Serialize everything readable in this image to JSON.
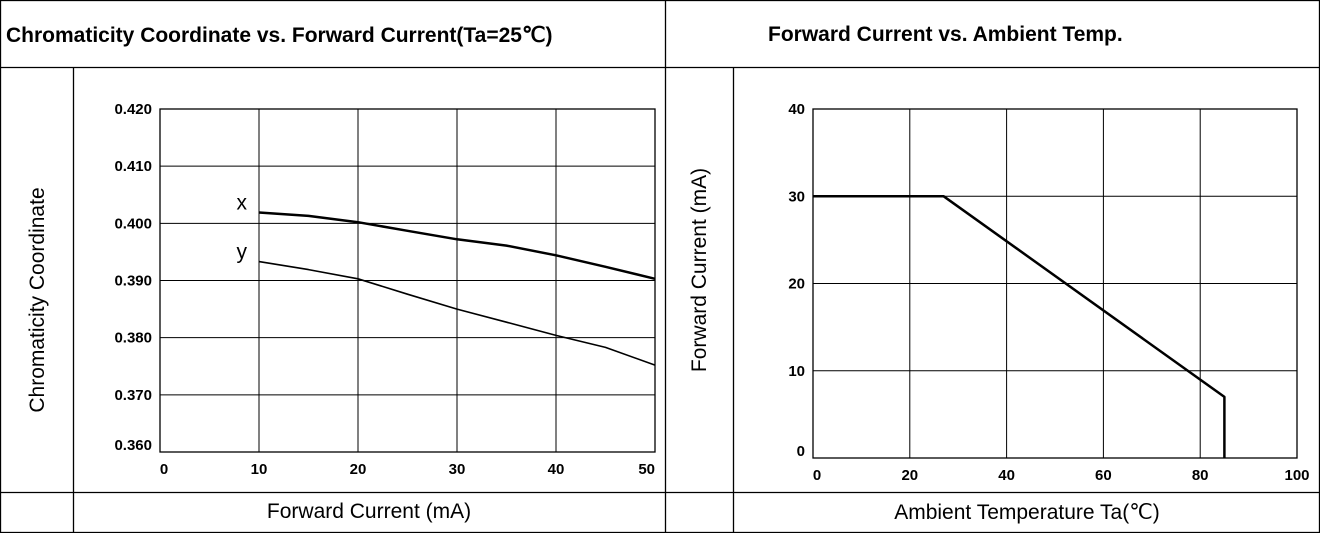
{
  "headers": {
    "left": "Chromaticity Coordinate vs. Forward Current(Ta=25℃)",
    "right": "Forward Current vs. Ambient Temp."
  },
  "chart_data": [
    {
      "type": "line",
      "title": "Chromaticity Coordinate vs. Forward Current(Ta=25℃)",
      "xlabel": "Forward Current (mA)",
      "ylabel": "Chromaticity Coordinate",
      "xlim": [
        0,
        50
      ],
      "ylim": [
        0.36,
        0.42
      ],
      "x_ticks": [
        "0",
        "10",
        "20",
        "30",
        "40",
        "50"
      ],
      "y_ticks": [
        "0.360",
        "0.370",
        "0.380",
        "0.390",
        "0.400",
        "0.410",
        "0.420"
      ],
      "grid": true,
      "series": [
        {
          "name": "x",
          "x": [
            10,
            15,
            20,
            25,
            30,
            35,
            40,
            45,
            50
          ],
          "y": [
            0.4019,
            0.4013,
            0.4002,
            0.3987,
            0.3972,
            0.3961,
            0.3944,
            0.3924,
            0.3903
          ]
        },
        {
          "name": "y",
          "x": [
            10,
            15,
            20,
            25,
            30,
            35,
            40,
            45,
            50
          ],
          "y": [
            0.3933,
            0.3919,
            0.3903,
            0.3876,
            0.385,
            0.3827,
            0.3804,
            0.3783,
            0.3752
          ]
        }
      ]
    },
    {
      "type": "line",
      "title": "Forward Current vs. Ambient Temp.",
      "xlabel": "Ambient Temperature Ta(℃)",
      "ylabel": "Forward Current (mA)",
      "xlim": [
        0,
        100
      ],
      "ylim": [
        0,
        40
      ],
      "x_ticks": [
        "0",
        "20",
        "40",
        "60",
        "80",
        "100"
      ],
      "y_ticks": [
        "0",
        "10",
        "20",
        "30",
        "40"
      ],
      "grid": true,
      "series": [
        {
          "x": [
            0,
            27,
            85,
            85
          ],
          "y": [
            30,
            30,
            7,
            0
          ]
        }
      ]
    }
  ]
}
